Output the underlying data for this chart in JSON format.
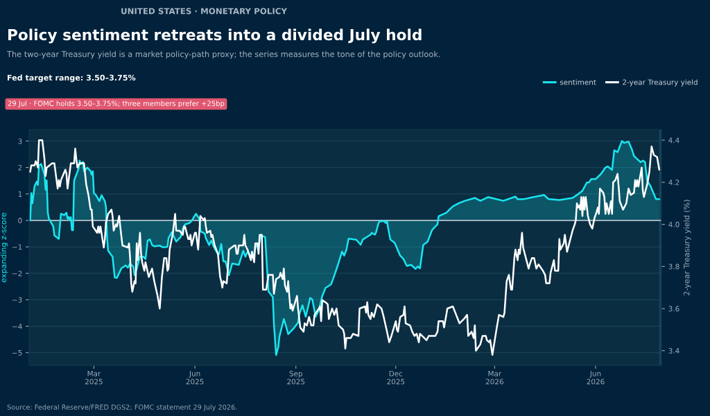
{
  "chart_data": {
    "type": "line",
    "title": "Policy sentiment retreats into a divided July hold",
    "subtitle": "The two-year Treasury yield is a market policy-path proxy; the series measures the tone of the policy outlook.",
    "ylabel": "expanding z-score",
    "y2label": "2-year Treasury yield (%)",
    "annotations": [
      "UNITED STATES · MONETARY POLICY",
      "Fed target range: 3.50–3.75%",
      "29 Jul · FOMC holds 3.50–3.75%; three members prefer +25bp",
      "Source: Federal Reserve/FRED DGS2; FOMC statement 29 July 2026."
    ],
    "xlim": [
      "2025-01-01",
      "2026-07-31"
    ],
    "xticks": [
      {
        "value": "2025-03-01",
        "label": "Mar\n2025"
      },
      {
        "value": "2025-06-01",
        "label": "Jun\n2025"
      },
      {
        "value": "2025-09-01",
        "label": "Sep\n2025"
      },
      {
        "value": "2025-12-01",
        "label": "Dec\n2025"
      },
      {
        "value": "2026-03-01",
        "label": "Mar\n2026"
      },
      {
        "value": "2026-06-01",
        "label": "Jun\n2026"
      }
    ],
    "ylim": [
      -5.48,
      3.43
    ],
    "yticks": [
      {
        "value": -5,
        "label": "−5"
      },
      {
        "value": -4,
        "label": "−4"
      },
      {
        "value": -3,
        "label": "−3"
      },
      {
        "value": -2,
        "label": "−2"
      },
      {
        "value": -1,
        "label": "−1"
      },
      0,
      1,
      2,
      3
    ],
    "y2lim": [
      3.33,
      4.45
    ],
    "y2ticks": [
      {
        "value": 3.4,
        "label": "3.4"
      },
      {
        "value": 3.6,
        "label": "3.6"
      },
      {
        "value": 3.8,
        "label": "3.8"
      },
      {
        "value": 4.0,
        "label": "4.0"
      },
      {
        "value": 4.2,
        "label": "4.2"
      },
      {
        "value": 4.4,
        "label": "4.4"
      }
    ],
    "grid": "y",
    "legend": "top right",
    "ref_lines": [
      {
        "axis": "y",
        "value": 0,
        "color": "#b9c3cb"
      }
    ],
    "bands": [
      {
        "axis": "x",
        "from": "2026-07-29",
        "to": "2026-07-31",
        "color": "#1f5870"
      }
    ],
    "series": [
      {
        "name": "sentiment",
        "type": "area",
        "axis": "y",
        "color": "#19e6f0",
        "x": [
          "2025-01-02",
          "2025-01-03",
          "2025-01-04",
          "2025-01-06",
          "2025-01-08",
          "2025-01-09",
          "2025-01-10",
          "2025-01-12",
          "2025-01-13",
          "2025-01-15",
          "2025-01-16",
          "2025-01-17",
          "2025-01-18",
          "2025-01-19",
          "2025-01-23",
          "2025-01-24",
          "2025-01-28",
          "2025-01-30",
          "2025-02-02",
          "2025-02-04",
          "2025-02-05",
          "2025-02-06",
          "2025-02-07",
          "2025-02-08",
          "2025-02-09",
          "2025-02-10",
          "2025-02-11",
          "2025-02-15",
          "2025-02-16",
          "2025-02-17",
          "2025-02-19",
          "2025-02-20",
          "2025-02-23",
          "2025-02-26",
          "2025-02-27",
          "2025-02-28",
          "2025-03-01",
          "2025-03-03",
          "2025-03-06",
          "2025-03-08",
          "2025-03-11",
          "2025-03-12",
          "2025-03-13",
          "2025-03-14",
          "2025-03-18",
          "2025-03-20",
          "2025-03-22",
          "2025-03-26",
          "2025-03-30",
          "2025-04-01",
          "2025-04-03",
          "2025-04-06",
          "2025-04-07",
          "2025-04-09",
          "2025-04-12",
          "2025-04-15",
          "2025-04-17",
          "2025-04-19",
          "2025-04-21",
          "2025-04-23",
          "2025-04-25",
          "2025-04-30",
          "2025-05-03",
          "2025-05-07",
          "2025-05-08",
          "2025-05-11",
          "2025-05-15",
          "2025-05-19",
          "2025-05-21",
          "2025-05-23",
          "2025-05-27",
          "2025-05-29",
          "2025-05-31",
          "2025-06-02",
          "2025-06-05",
          "2025-06-06",
          "2025-06-10",
          "2025-06-11",
          "2025-06-14",
          "2025-06-16",
          "2025-06-18",
          "2025-06-22",
          "2025-06-23",
          "2025-06-25",
          "2025-06-27",
          "2025-06-29",
          "2025-07-02",
          "2025-07-05",
          "2025-07-11",
          "2025-07-15",
          "2025-07-17",
          "2025-07-19",
          "2025-07-23",
          "2025-07-25",
          "2025-07-27",
          "2025-07-29",
          "2025-07-31",
          "2025-08-04",
          "2025-08-07",
          "2025-08-11",
          "2025-08-12",
          "2025-08-14",
          "2025-08-16",
          "2025-08-17",
          "2025-08-21",
          "2025-08-23",
          "2025-08-25",
          "2025-08-30",
          "2025-09-03",
          "2025-09-04",
          "2025-09-07",
          "2025-09-10",
          "2025-09-14",
          "2025-09-16",
          "2025-09-19",
          "2025-09-22",
          "2025-09-25",
          "2025-09-28",
          "2025-10-03",
          "2025-10-05",
          "2025-10-09",
          "2025-10-13",
          "2025-10-15",
          "2025-10-17",
          "2025-10-19",
          "2025-10-26",
          "2025-10-30",
          "2025-11-01",
          "2025-11-08",
          "2025-11-09",
          "2025-11-12",
          "2025-11-13",
          "2025-11-15",
          "2025-11-16",
          "2025-11-20",
          "2025-11-22",
          "2025-11-23",
          "2025-11-24",
          "2025-11-26",
          "2025-11-30",
          "2025-12-05",
          "2025-12-08",
          "2025-12-11",
          "2025-12-15",
          "2025-12-19",
          "2025-12-21",
          "2025-12-23",
          "2025-12-26",
          "2025-12-30",
          "2026-01-03",
          "2026-01-06",
          "2026-01-08",
          "2026-01-09",
          "2026-01-16",
          "2026-01-22",
          "2026-01-28",
          "2026-02-02",
          "2026-02-11",
          "2026-02-16",
          "2026-02-23",
          "2026-03-09",
          "2026-03-20",
          "2026-03-22",
          "2026-03-27",
          "2026-04-15",
          "2026-04-19",
          "2026-04-29",
          "2026-05-11",
          "2026-05-16",
          "2026-05-20",
          "2026-05-24",
          "2026-05-26",
          "2026-05-28",
          "2026-06-01",
          "2026-06-06",
          "2026-06-10",
          "2026-06-12",
          "2026-06-16",
          "2026-06-18",
          "2026-06-21",
          "2026-06-25",
          "2026-06-27",
          "2026-07-01",
          "2026-07-04",
          "2026-07-06",
          "2026-07-12",
          "2026-07-14",
          "2026-07-16",
          "2026-07-18",
          "2026-07-21",
          "2026-07-26",
          "2026-07-29"
        ],
        "values": [
          0.0,
          1.03,
          0.64,
          1.3,
          1.47,
          1.34,
          2.08,
          2.13,
          2.0,
          1.73,
          1.16,
          1.51,
          0.29,
          0.07,
          -0.23,
          -0.57,
          -0.7,
          0.25,
          0.2,
          0.29,
          0.07,
          0.13,
          0.01,
          0.12,
          -0.37,
          -0.37,
          1.51,
          1.95,
          2.26,
          2.13,
          2.21,
          1.86,
          2.0,
          1.86,
          1.73,
          1.86,
          1.03,
          0.95,
          0.73,
          0.95,
          0.73,
          0.51,
          -0.63,
          -1.15,
          -1.37,
          -2.16,
          -2.17,
          -1.81,
          -1.7,
          -1.79,
          -1.63,
          -1.76,
          -2.07,
          -1.83,
          -1.37,
          -1.37,
          -1.46,
          -0.76,
          -0.72,
          -0.93,
          -0.98,
          -0.95,
          -1.02,
          -1.0,
          -0.67,
          -0.45,
          -0.8,
          -0.63,
          -0.32,
          -0.15,
          -0.1,
          -0.02,
          0.12,
          0.25,
          0.07,
          -0.41,
          -0.5,
          -0.67,
          -0.93,
          -0.76,
          -0.98,
          -1.28,
          -1.28,
          -0.89,
          -1.55,
          -1.55,
          -2.07,
          -1.63,
          -1.68,
          -1.15,
          -1.37,
          -1.18,
          -1.41,
          -1.24,
          -0.93,
          -1.02,
          -0.57,
          -0.63,
          -2.68,
          -2.9,
          -3.91,
          -5.09,
          -4.78,
          -4.39,
          -3.73,
          -3.99,
          -4.3,
          -4.08,
          -3.86,
          -3.56,
          -3.21,
          -3.64,
          -2.93,
          -2.99,
          -3.64,
          -3.38,
          -2.86,
          -2.55,
          -2.42,
          -2.2,
          -1.72,
          -1.18,
          -1.33,
          -1.11,
          -0.69,
          -0.73,
          -0.92,
          -0.72,
          -0.54,
          -0.47,
          -0.54,
          -0.45,
          -0.15,
          -0.04,
          -0.02,
          -0.1,
          -0.02,
          -0.28,
          -0.72,
          -0.85,
          -1.33,
          -1.46,
          -1.72,
          -1.68,
          -1.83,
          -1.74,
          -1.81,
          -0.93,
          -0.8,
          -0.37,
          -0.23,
          -0.15,
          0.16,
          0.29,
          0.53,
          0.66,
          0.74,
          0.85,
          0.74,
          0.88,
          0.74,
          0.9,
          0.8,
          0.8,
          0.96,
          0.81,
          0.77,
          0.85,
          0.99,
          1.12,
          1.43,
          1.44,
          1.56,
          1.56,
          1.76,
          2.0,
          2.04,
          1.91,
          2.65,
          2.58,
          3.0,
          2.93,
          2.98,
          2.69,
          2.43,
          2.2,
          2.26,
          2.21,
          1.51,
          1.3,
          0.81,
          0.8
        ]
      },
      {
        "name": "2-year Treasury yield",
        "axis": "y2",
        "color": "#ffffff",
        "x": [
          "2025-01-02",
          "2025-01-03",
          "2025-01-06",
          "2025-01-07",
          "2025-01-08",
          "2025-01-09",
          "2025-01-10",
          "2025-01-13",
          "2025-01-15",
          "2025-01-16",
          "2025-01-17",
          "2025-01-22",
          "2025-01-24",
          "2025-01-27",
          "2025-01-28",
          "2025-01-29",
          "2025-01-30",
          "2025-02-03",
          "2025-02-04",
          "2025-02-05",
          "2025-02-07",
          "2025-02-08",
          "2025-02-11",
          "2025-02-12",
          "2025-02-13",
          "2025-02-14",
          "2025-02-16",
          "2025-02-18",
          "2025-02-20",
          "2025-02-22",
          "2025-02-24",
          "2025-02-26",
          "2025-02-27",
          "2025-02-28",
          "2025-03-04",
          "2025-03-05",
          "2025-03-06",
          "2025-03-07",
          "2025-03-10",
          "2025-03-11",
          "2025-03-12",
          "2025-03-14",
          "2025-03-17",
          "2025-03-18",
          "2025-03-19",
          "2025-03-21",
          "2025-03-22",
          "2025-03-24",
          "2025-03-25",
          "2025-03-27",
          "2025-04-01",
          "2025-04-02",
          "2025-04-03",
          "2025-04-04",
          "2025-04-05",
          "2025-04-07",
          "2025-04-08",
          "2025-04-09",
          "2025-04-10",
          "2025-04-11",
          "2025-04-12",
          "2025-04-13",
          "2025-04-14",
          "2025-04-16",
          "2025-04-17",
          "2025-04-20",
          "2025-04-23",
          "2025-04-25",
          "2025-04-28",
          "2025-04-30",
          "2025-05-02",
          "2025-05-04",
          "2025-05-06",
          "2025-05-07",
          "2025-05-08",
          "2025-05-09",
          "2025-05-12",
          "2025-05-14",
          "2025-05-15",
          "2025-05-18",
          "2025-05-21",
          "2025-05-22",
          "2025-05-23",
          "2025-05-26",
          "2025-05-27",
          "2025-05-28",
          "2025-05-29",
          "2025-06-01",
          "2025-06-02",
          "2025-06-04",
          "2025-06-05",
          "2025-06-06",
          "2025-06-09",
          "2025-06-10",
          "2025-06-11",
          "2025-06-12",
          "2025-06-15",
          "2025-06-16",
          "2025-06-17",
          "2025-06-19",
          "2025-06-22",
          "2025-06-24",
          "2025-06-25",
          "2025-06-26",
          "2025-06-27",
          "2025-06-30",
          "2025-07-01",
          "2025-07-02",
          "2025-07-07",
          "2025-07-08",
          "2025-07-09",
          "2025-07-10",
          "2025-07-11",
          "2025-07-15",
          "2025-07-16",
          "2025-07-17",
          "2025-07-19",
          "2025-07-22",
          "2025-07-23",
          "2025-07-25",
          "2025-07-26",
          "2025-07-28",
          "2025-07-29",
          "2025-07-30",
          "2025-08-01",
          "2025-08-02",
          "2025-08-05",
          "2025-08-07",
          "2025-08-11",
          "2025-08-12",
          "2025-08-14",
          "2025-08-17",
          "2025-08-18",
          "2025-08-20",
          "2025-08-21",
          "2025-08-22",
          "2025-08-24",
          "2025-08-25",
          "2025-08-26",
          "2025-08-27",
          "2025-08-28",
          "2025-08-29",
          "2025-09-02",
          "2025-09-03",
          "2025-09-05",
          "2025-09-08",
          "2025-09-09",
          "2025-09-11",
          "2025-09-13",
          "2025-09-15",
          "2025-09-17",
          "2025-09-18",
          "2025-09-22",
          "2025-09-23",
          "2025-09-24",
          "2025-09-25",
          "2025-09-28",
          "2025-09-30",
          "2025-10-01",
          "2025-10-04",
          "2025-10-06",
          "2025-10-08",
          "2025-10-10",
          "2025-10-14",
          "2025-10-15",
          "2025-10-16",
          "2025-10-17",
          "2025-10-21",
          "2025-10-23",
          "2025-10-28",
          "2025-10-29",
          "2025-11-03",
          "2025-11-04",
          "2025-11-05",
          "2025-11-06",
          "2025-11-08",
          "2025-11-09",
          "2025-11-11",
          "2025-11-14",
          "2025-11-18",
          "2025-11-20",
          "2025-11-23",
          "2025-11-25",
          "2025-11-27",
          "2025-12-01",
          "2025-12-02",
          "2025-12-03",
          "2025-12-05",
          "2025-12-08",
          "2025-12-09",
          "2025-12-10",
          "2025-12-14",
          "2025-12-16",
          "2025-12-18",
          "2025-12-20",
          "2025-12-22",
          "2025-12-23",
          "2025-12-29",
          "2025-12-31",
          "2026-01-06",
          "2026-01-08",
          "2026-01-09",
          "2026-01-13",
          "2026-01-14",
          "2026-01-17",
          "2026-01-22",
          "2026-01-25",
          "2026-01-28",
          "2026-02-01",
          "2026-02-04",
          "2026-02-05",
          "2026-02-08",
          "2026-02-10",
          "2026-02-11",
          "2026-02-12",
          "2026-02-16",
          "2026-02-18",
          "2026-02-21",
          "2026-02-22",
          "2026-02-24",
          "2026-02-25",
          "2026-02-27",
          "2026-03-03",
          "2026-03-05",
          "2026-03-09",
          "2026-03-10",
          "2026-03-12",
          "2026-03-14",
          "2026-03-16",
          "2026-03-17",
          "2026-03-19",
          "2026-03-20",
          "2026-03-22",
          "2026-03-23",
          "2026-03-24",
          "2026-03-26",
          "2026-03-27",
          "2026-03-30",
          "2026-04-01",
          "2026-04-02",
          "2026-04-04",
          "2026-04-06",
          "2026-04-08",
          "2026-04-10",
          "2026-04-14",
          "2026-04-16",
          "2026-04-17",
          "2026-04-20",
          "2026-04-21",
          "2026-04-22",
          "2026-04-24",
          "2026-04-25",
          "2026-04-28",
          "2026-04-29",
          "2026-04-30",
          "2026-05-03",
          "2026-05-04",
          "2026-05-06",
          "2026-05-08",
          "2026-05-11",
          "2026-05-13",
          "2026-05-14",
          "2026-05-15",
          "2026-05-16",
          "2026-05-17",
          "2026-05-18",
          "2026-05-19",
          "2026-05-20",
          "2026-05-21",
          "2026-05-22",
          "2026-05-23",
          "2026-05-25",
          "2026-05-27",
          "2026-05-29",
          "2026-05-31",
          "2026-06-02",
          "2026-06-03",
          "2026-06-04",
          "2026-06-05",
          "2026-06-08",
          "2026-06-09",
          "2026-06-10",
          "2026-06-11",
          "2026-06-13",
          "2026-06-15",
          "2026-06-16",
          "2026-06-17",
          "2026-06-19",
          "2026-06-21",
          "2026-06-22",
          "2026-06-23",
          "2026-06-26",
          "2026-06-29",
          "2026-07-01",
          "2026-07-03",
          "2026-07-06",
          "2026-07-07",
          "2026-07-08",
          "2026-07-09",
          "2026-07-10",
          "2026-07-13",
          "2026-07-14",
          "2026-07-15",
          "2026-07-18",
          "2026-07-20",
          "2026-07-22",
          "2026-07-24",
          "2026-07-27",
          "2026-07-29"
        ],
        "values": [
          4.25,
          4.28,
          4.28,
          4.3,
          4.29,
          4.27,
          4.4,
          4.4,
          4.31,
          4.23,
          4.27,
          4.29,
          4.29,
          4.17,
          4.21,
          4.18,
          4.21,
          4.26,
          4.24,
          4.17,
          4.25,
          4.29,
          4.29,
          4.36,
          4.31,
          4.27,
          4.29,
          4.29,
          4.29,
          4.19,
          4.14,
          4.07,
          4.07,
          3.99,
          3.96,
          3.99,
          3.96,
          3.99,
          3.89,
          3.93,
          4.01,
          4.05,
          4.07,
          4.04,
          3.97,
          4.0,
          3.99,
          4.04,
          3.99,
          3.9,
          3.89,
          3.91,
          3.84,
          3.72,
          3.68,
          3.73,
          3.72,
          3.91,
          3.83,
          3.9,
          3.96,
          3.86,
          3.82,
          3.78,
          3.82,
          3.75,
          3.79,
          3.73,
          3.66,
          3.6,
          3.75,
          3.84,
          3.84,
          3.78,
          3.79,
          3.88,
          3.96,
          4.05,
          3.97,
          3.97,
          3.95,
          3.99,
          3.99,
          3.93,
          3.93,
          3.95,
          3.9,
          3.96,
          3.96,
          3.88,
          3.96,
          4.04,
          4.02,
          4.03,
          3.99,
          3.96,
          3.97,
          3.94,
          3.95,
          3.9,
          3.86,
          3.75,
          3.73,
          3.7,
          3.73,
          3.72,
          3.79,
          3.88,
          3.9,
          3.9,
          3.86,
          3.86,
          3.9,
          3.9,
          3.95,
          3.9,
          3.88,
          3.83,
          3.87,
          3.82,
          3.91,
          3.91,
          3.86,
          3.95,
          3.95,
          3.69,
          3.69,
          3.76,
          3.76,
          3.67,
          3.74,
          3.75,
          3.77,
          3.74,
          3.79,
          3.71,
          3.68,
          3.73,
          3.66,
          3.6,
          3.62,
          3.59,
          3.66,
          3.6,
          3.51,
          3.49,
          3.53,
          3.52,
          3.56,
          3.52,
          3.52,
          3.57,
          3.6,
          3.61,
          3.54,
          3.64,
          3.63,
          3.62,
          3.55,
          3.6,
          3.57,
          3.6,
          3.52,
          3.5,
          3.48,
          3.41,
          3.46,
          3.46,
          3.48,
          3.47,
          3.6,
          3.61,
          3.58,
          3.63,
          3.57,
          3.55,
          3.58,
          3.56,
          3.62,
          3.6,
          3.56,
          3.49,
          3.44,
          3.47,
          3.54,
          3.5,
          3.49,
          3.56,
          3.57,
          3.61,
          3.53,
          3.52,
          3.49,
          3.47,
          3.48,
          3.44,
          3.48,
          3.45,
          3.47,
          3.47,
          3.49,
          3.54,
          3.54,
          3.51,
          3.6,
          3.61,
          3.57,
          3.53,
          3.55,
          3.57,
          3.47,
          3.49,
          3.46,
          3.52,
          3.4,
          3.43,
          3.47,
          3.47,
          3.45,
          3.44,
          3.45,
          3.38,
          3.51,
          3.57,
          3.56,
          3.58,
          3.73,
          3.76,
          3.69,
          3.69,
          3.84,
          3.88,
          3.83,
          3.88,
          3.86,
          3.96,
          3.89,
          3.83,
          3.79,
          3.81,
          3.84,
          3.84,
          3.79,
          3.81,
          3.78,
          3.76,
          3.72,
          3.72,
          3.77,
          3.79,
          3.83,
          3.78,
          3.78,
          3.93,
          3.88,
          3.91,
          3.95,
          3.87,
          3.91,
          3.97,
          4.0,
          4.02,
          4.1,
          4.08,
          4.09,
          4.07,
          4.13,
          4.04,
          4.13,
          4.07,
          4.13,
          4.04,
          4.0,
          3.98,
          4.03,
          4.06,
          4.08,
          4.05,
          4.17,
          4.15,
          4.13,
          4.05,
          4.1,
          4.05,
          4.11,
          4.05,
          4.2,
          4.21,
          4.24,
          4.18,
          4.11,
          4.07,
          4.1,
          4.17,
          4.14,
          4.15,
          4.21,
          4.18,
          4.21,
          4.18,
          4.27,
          4.16,
          4.13,
          4.19,
          4.25,
          4.37,
          4.33,
          4.32,
          4.26
        ]
      }
    ]
  }
}
